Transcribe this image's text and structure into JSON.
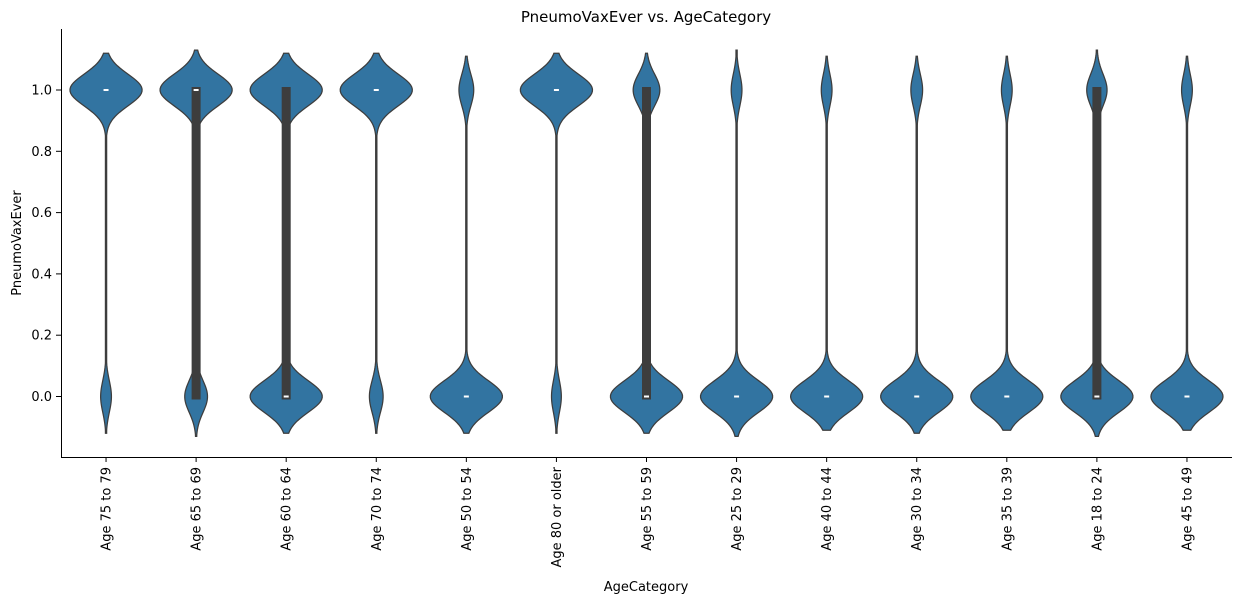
{
  "chart_data": {
    "type": "violin",
    "title": "PneumoVaxEver vs. AgeCategory",
    "xlabel": "AgeCategory",
    "ylabel": "PneumoVaxEver",
    "ylim": [
      -0.19,
      1.2
    ],
    "yticks": [
      0.0,
      0.2,
      0.4,
      0.6,
      0.8,
      1.0
    ],
    "ytick_labels": [
      "0.0",
      "0.2",
      "0.4",
      "0.6",
      "0.8",
      "1.0"
    ],
    "grid": false,
    "colors": {
      "fill": "#3274a1",
      "edge": "#3d3d3d",
      "box": "#3d3d3d",
      "median": "#ffffff"
    },
    "categories": [
      "Age 75 to 79",
      "Age 65 to 69",
      "Age 60 to 64",
      "Age 70 to 74",
      "Age 50 to 54",
      "Age 80 or older",
      "Age 55 to 59",
      "Age 25 to 29",
      "Age 40 to 44",
      "Age 30 to 34",
      "Age 35 to 39",
      "Age 18 to 24",
      "Age 45 to 49"
    ],
    "violins": [
      {
        "category": "Age 75 to 79",
        "share_vaccinated": 0.87,
        "median": 1,
        "q1": 1,
        "q3": 1,
        "y_min": -0.12,
        "y_max": 1.12
      },
      {
        "category": "Age 65 to 69",
        "share_vaccinated": 0.76,
        "median": 1,
        "q1": 0,
        "q3": 1,
        "y_min": -0.13,
        "y_max": 1.13
      },
      {
        "category": "Age 60 to 64",
        "share_vaccinated": 0.5,
        "median": 0,
        "q1": 0,
        "q3": 1,
        "y_min": -0.12,
        "y_max": 1.12
      },
      {
        "category": "Age 70 to 74",
        "share_vaccinated": 0.84,
        "median": 1,
        "q1": 1,
        "q3": 1,
        "y_min": -0.12,
        "y_max": 1.12
      },
      {
        "category": "Age 50 to 54",
        "share_vaccinated": 0.17,
        "median": 0,
        "q1": 0,
        "q3": 0,
        "y_min": -0.12,
        "y_max": 1.11
      },
      {
        "category": "Age 80 or older",
        "share_vaccinated": 0.88,
        "median": 1,
        "q1": 1,
        "q3": 1,
        "y_min": -0.12,
        "y_max": 1.12
      },
      {
        "category": "Age 55 to 59",
        "share_vaccinated": 0.27,
        "median": 0,
        "q1": 0,
        "q3": 1,
        "y_min": -0.12,
        "y_max": 1.12
      },
      {
        "category": "Age 25 to 29",
        "share_vaccinated": 0.13,
        "median": 0,
        "q1": 0,
        "q3": 0,
        "y_min": -0.13,
        "y_max": 1.13
      },
      {
        "category": "Age 40 to 44",
        "share_vaccinated": 0.13,
        "median": 0,
        "q1": 0,
        "q3": 0,
        "y_min": -0.11,
        "y_max": 1.11
      },
      {
        "category": "Age 30 to 34",
        "share_vaccinated": 0.14,
        "median": 0,
        "q1": 0,
        "q3": 0,
        "y_min": -0.12,
        "y_max": 1.11
      },
      {
        "category": "Age 35 to 39",
        "share_vaccinated": 0.13,
        "median": 0,
        "q1": 0,
        "q3": 0,
        "y_min": -0.11,
        "y_max": 1.11
      },
      {
        "category": "Age 18 to 24",
        "share_vaccinated": 0.22,
        "median": 0,
        "q1": 0,
        "q3": 1,
        "y_min": -0.13,
        "y_max": 1.13
      },
      {
        "category": "Age 45 to 49",
        "share_vaccinated": 0.13,
        "median": 0,
        "q1": 0,
        "q3": 0,
        "y_min": -0.11,
        "y_max": 1.11
      }
    ]
  }
}
